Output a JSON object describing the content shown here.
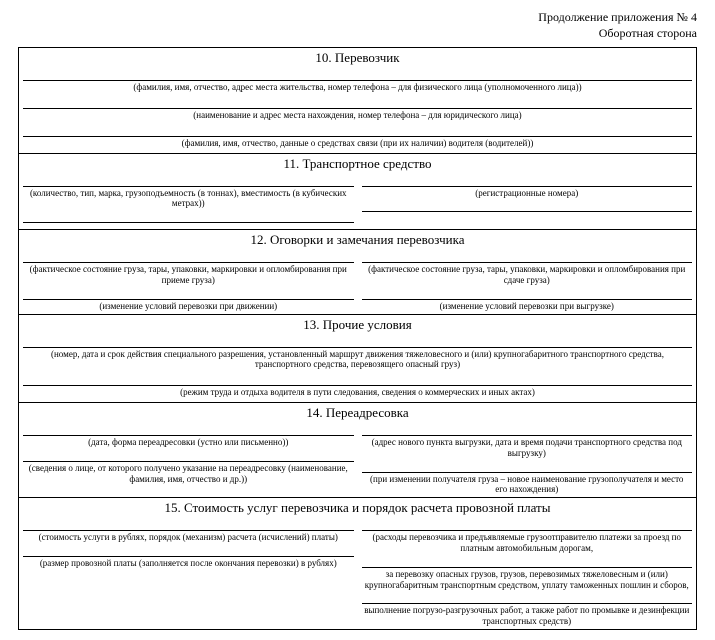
{
  "header": {
    "line1": "Продолжение приложения № 4",
    "line2": "Оборотная сторона"
  },
  "s10": {
    "title": "10. Перевозчик",
    "cap1": "(фамилия, имя, отчество, адрес места жительства, номер телефона – для физического лица (уполномоченного лица))",
    "cap2": "(наименование и адрес места нахождения, номер телефона – для юридического лица)",
    "cap3": "(фамилия, имя, отчество, данные о средствах связи (при их наличии) водителя (водителей))"
  },
  "s11": {
    "title": "11. Транспортное средство",
    "left": "(количество, тип, марка, грузоподъемность (в тоннах), вместимость (в кубических метрах))",
    "right": "(регистрационные номера)"
  },
  "s12": {
    "title": "12. Оговорки и замечания перевозчика",
    "left1": "(фактическое состояние груза, тары, упаковки, маркировки и опломбирования при приеме груза)",
    "left2": "(изменение условий перевозки при движении)",
    "right1": "(фактическое состояние груза, тары, упаковки, маркировки и опломбирования при сдаче груза)",
    "right2": "(изменение условий перевозки при выгрузке)"
  },
  "s13": {
    "title": "13. Прочие условия",
    "cap1": "(номер, дата и срок действия специального разрешения, установленный маршрут движения тяжеловесного и (или) крупногабаритного транспортного средства, транспортного средства, перевозящего опасный груз)",
    "cap2": "(режим труда и отдыха водителя в пути следования, сведения о коммерческих и иных актах)"
  },
  "s14": {
    "title": "14. Переадресовка",
    "left1": "(дата, форма переадресовки (устно или письменно))",
    "left2": "(сведения о лице, от которого получено указание на переадресовку (наименование, фамилия, имя, отчество и др.))",
    "right1": "(адрес нового пункта выгрузки, дата и время подачи транспортного средства под выгрузку)",
    "right2": "(при изменении получателя груза – новое наименование грузополучателя и место его нахождения)"
  },
  "s15": {
    "title": "15. Стоимость услуг перевозчика и порядок расчета провозной платы",
    "left1": "(стоимость услуги в рублях, порядок (механизм) расчета (исчислений) платы)",
    "left2": "(размер провозной платы (заполняется после окончания перевозки) в рублях)",
    "right1": "(расходы перевозчика и предъявляемые грузоотправителю платежи за проезд по платным автомобильным дорогам,",
    "right2": "за перевозку опасных грузов, грузов, перевозимых тяжеловесным и (или) крупногабаритным транспортным средством, уплату таможенных пошлин и сборов,",
    "right3": "выполнение погрузо-разгрузочных работ, а также работ по промывке и дезинфекции транспортных средств)"
  }
}
